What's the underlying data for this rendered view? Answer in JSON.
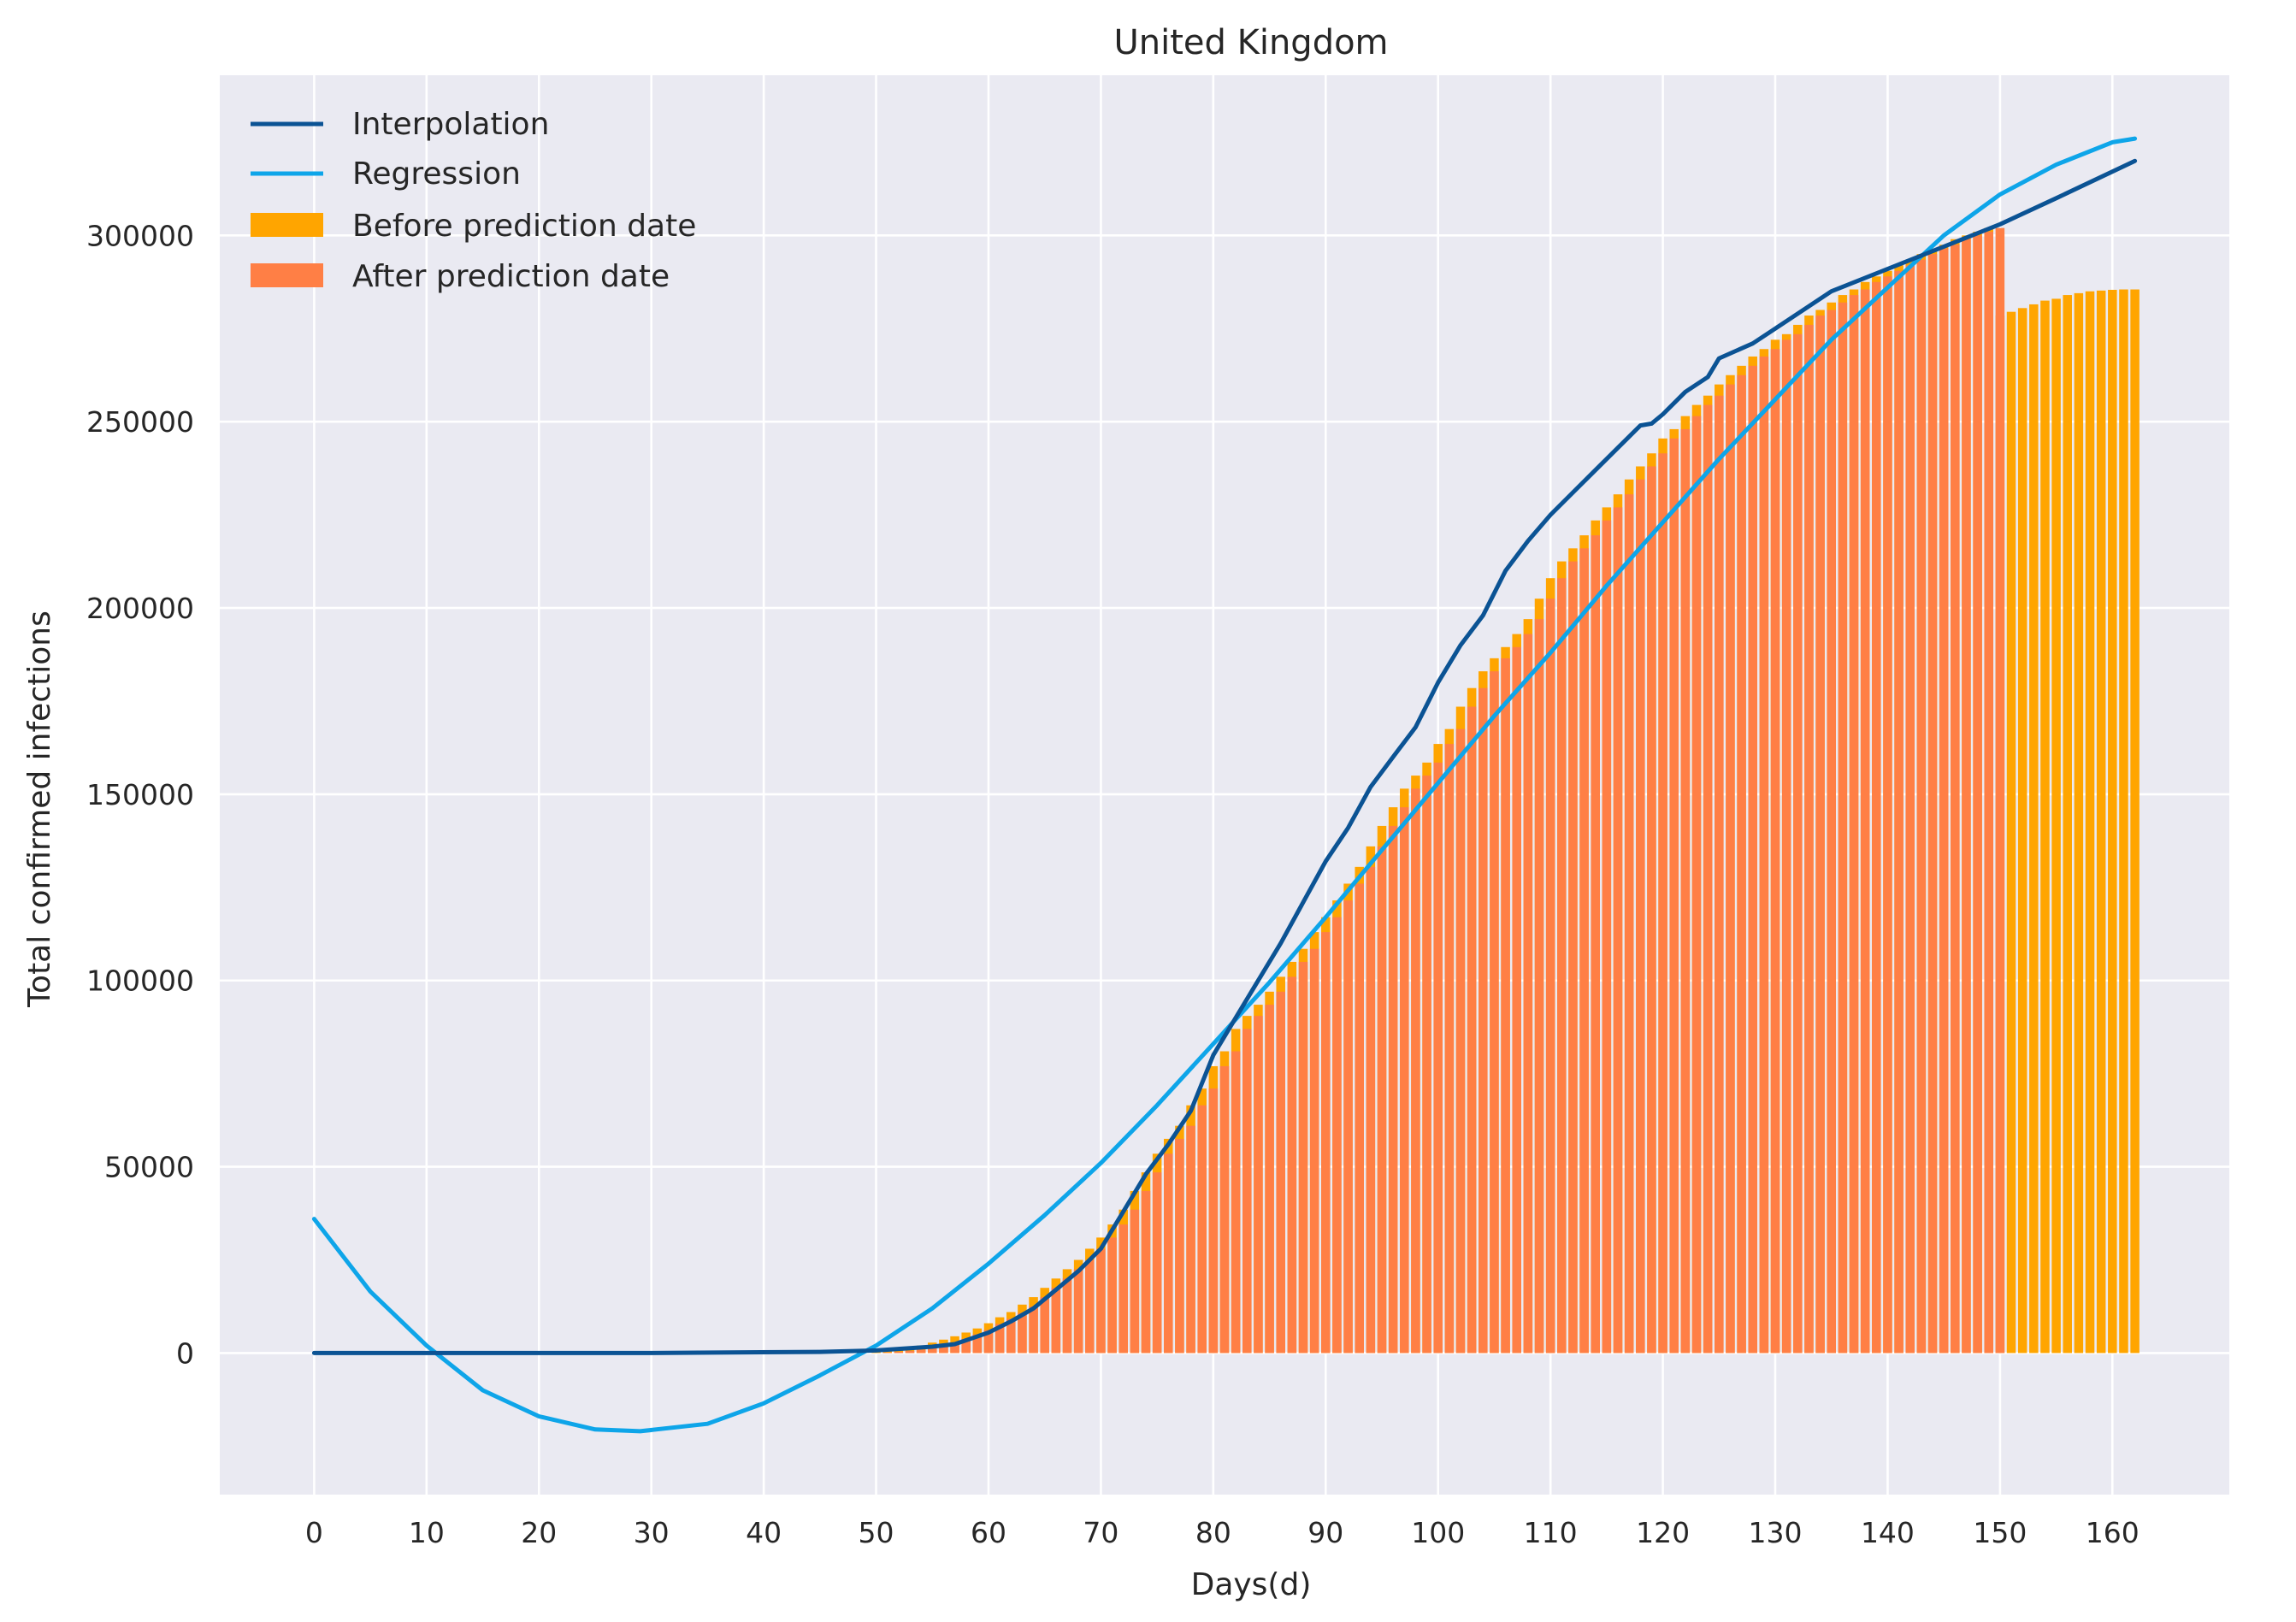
{
  "chart_data": {
    "type": "bar",
    "title": "United Kingdom",
    "xlabel": "Days(d)",
    "ylabel": "Total confirmed infections",
    "xlim": [
      -8.4,
      170.4
    ],
    "ylim": [
      -38000,
      343000
    ],
    "grid": true,
    "legend_placement": "top-left",
    "x_ticks": [
      0,
      10,
      20,
      30,
      40,
      50,
      60,
      70,
      80,
      90,
      100,
      110,
      120,
      130,
      140,
      150,
      160
    ],
    "y_ticks": [
      0,
      50000,
      100000,
      150000,
      200000,
      250000,
      300000
    ],
    "x_tick_labels": [
      "0",
      "10",
      "20",
      "30",
      "40",
      "50",
      "60",
      "70",
      "80",
      "90",
      "100",
      "110",
      "120",
      "130",
      "140",
      "150",
      "160"
    ],
    "y_tick_labels": [
      "0",
      "50000",
      "100000",
      "150000",
      "200000",
      "250000",
      "300000"
    ],
    "colors": {
      "background": "#eaeaf2",
      "grid": "#ffffff",
      "before_bars": "#ffa500",
      "after_bars": "#ff7f45",
      "interpolation": "#0b5394",
      "regression": "#0ea5e9"
    },
    "series": [
      {
        "name": "Interpolation",
        "kind": "line",
        "x": [
          0,
          30,
          45,
          50,
          52,
          55,
          57,
          60,
          62,
          64,
          66,
          68,
          70,
          72,
          74,
          76,
          78,
          80,
          82,
          84,
          86,
          88,
          90,
          92,
          94,
          96,
          98,
          100,
          102,
          104,
          106,
          108,
          110,
          112,
          114,
          116,
          118,
          119,
          120,
          122,
          124,
          125,
          128,
          130,
          135,
          140,
          145,
          150,
          155,
          162
        ],
        "y": [
          0,
          0,
          300,
          700,
          1100,
          1700,
          2400,
          5500,
          8500,
          12000,
          17000,
          22000,
          28000,
          38000,
          48000,
          56000,
          65000,
          80000,
          90000,
          100000,
          110000,
          121000,
          132000,
          141000,
          152000,
          160000,
          168000,
          180000,
          190000,
          198000,
          210000,
          218000,
          225000,
          231000,
          237000,
          243000,
          249000,
          249500,
          252000,
          258000,
          262000,
          267000,
          271000,
          275000,
          285000,
          291000,
          297000,
          303000,
          310000,
          320000
        ]
      },
      {
        "name": "Regression",
        "kind": "line",
        "x": [
          0,
          5,
          10,
          15,
          20,
          25,
          29,
          35,
          40,
          45,
          50,
          55,
          60,
          65,
          70,
          75,
          80,
          85,
          90,
          95,
          100,
          105,
          110,
          115,
          120,
          125,
          130,
          135,
          140,
          145,
          150,
          155,
          160,
          162
        ],
        "y": [
          36000,
          16500,
          2000,
          -10000,
          -17000,
          -20500,
          -21000,
          -19000,
          -13500,
          -6000,
          2000,
          12000,
          24000,
          37000,
          51000,
          66500,
          83000,
          99500,
          117000,
          135000,
          153000,
          171000,
          188000,
          206000,
          223000,
          240000,
          256000,
          272000,
          286000,
          300000,
          311000,
          319000,
          325000,
          326000
        ]
      },
      {
        "name": "Before prediction date",
        "kind": "bar",
        "x_start": 50,
        "values": [
          300,
          600,
          1000,
          1500,
          2000,
          2800,
          3600,
          4500,
          5500,
          6600,
          8000,
          9600,
          11000,
          13000,
          15000,
          17500,
          20000,
          22500,
          25000,
          28000,
          31000,
          34500,
          38500,
          43500,
          48500,
          53500,
          57500,
          61000,
          66500,
          71000,
          77000,
          81000,
          87000,
          90500,
          93500,
          97000,
          101000,
          105000,
          108500,
          113000,
          117000,
          121500,
          126000,
          130500,
          136000,
          141500,
          146500,
          151500,
          155000,
          158500,
          163500,
          167500,
          173500,
          178500,
          183000,
          186500,
          189500,
          193000,
          197000,
          202500,
          208000,
          212500,
          216000,
          219500,
          223500,
          227000,
          230500,
          234500,
          238000,
          241500,
          245500,
          248000,
          251500,
          254500,
          257000,
          260000,
          262500,
          265000,
          267500,
          269500,
          272000,
          273500,
          276000,
          278500,
          280000,
          282000,
          284000,
          285500,
          287500,
          289000,
          290500,
          292000,
          293500,
          295000,
          296500,
          297500,
          299000,
          300000,
          301000,
          302000,
          278500,
          279500,
          280500,
          281500,
          282500,
          283000,
          284000,
          284500,
          285000,
          285200,
          285400,
          285500,
          285500
        ]
      },
      {
        "name": "After prediction date",
        "kind": "bar",
        "x_start": 50,
        "values": [
          0,
          150,
          350,
          600,
          900,
          1300,
          2000,
          2800,
          3800,
          5000,
          6200,
          7800,
          9200,
          10800,
          12500,
          15000,
          17500,
          20000,
          22500,
          25000,
          28000,
          31000,
          34500,
          38500,
          43500,
          48500,
          53500,
          57500,
          61000,
          66500,
          71000,
          77000,
          81000,
          87000,
          90500,
          93500,
          97000,
          101000,
          105000,
          108500,
          113000,
          117000,
          121500,
          126000,
          130500,
          136000,
          141500,
          146500,
          151500,
          155000,
          158500,
          163500,
          167500,
          173500,
          178500,
          183000,
          186500,
          189500,
          193000,
          197000,
          202500,
          208000,
          212500,
          216000,
          219500,
          223500,
          227000,
          230500,
          234500,
          238000,
          241500,
          245500,
          248000,
          251500,
          254500,
          257000,
          260000,
          262500,
          265000,
          267500,
          269500,
          272000,
          273500,
          276000,
          278500,
          280000,
          282000,
          284000,
          285500,
          287500,
          289000,
          290500,
          292000,
          293500,
          295000,
          296500,
          297500,
          299000,
          300000,
          301000,
          302000
        ]
      }
    ]
  }
}
